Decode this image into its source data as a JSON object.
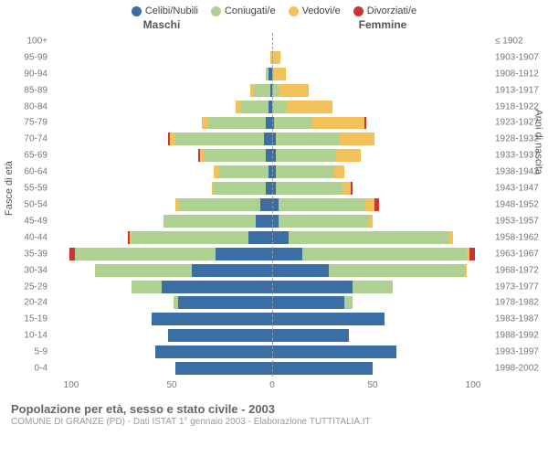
{
  "legend": [
    {
      "label": "Celibi/Nubili",
      "color": "#3a6ea5"
    },
    {
      "label": "Coniugati/e",
      "color": "#aed090"
    },
    {
      "label": "Vedovi/e",
      "color": "#f2c159"
    },
    {
      "label": "Divorziati/e",
      "color": "#cc3333"
    }
  ],
  "headers": {
    "male": "Maschi",
    "female": "Femmine"
  },
  "axis_titles": {
    "left": "Fasce di età",
    "right": "Anni di nascita"
  },
  "x_axis": {
    "max": 110,
    "ticks": [
      100,
      50,
      0,
      50,
      100
    ]
  },
  "colors": {
    "celibi": "#3a6ea5",
    "coniugati": "#aed090",
    "vedovi": "#f2c159",
    "divorziati": "#cc3333",
    "grid": "#999999",
    "text": "#777777",
    "bg": "#ffffff"
  },
  "rows": [
    {
      "age": "100+",
      "birth": "≤ 1902",
      "m": [
        0,
        0,
        0,
        0
      ],
      "f": [
        0,
        0,
        0,
        0
      ]
    },
    {
      "age": "95-99",
      "birth": "1903-1907",
      "m": [
        0,
        0,
        1,
        0
      ],
      "f": [
        0,
        0,
        4,
        0
      ]
    },
    {
      "age": "90-94",
      "birth": "1908-1912",
      "m": [
        2,
        1,
        0,
        0
      ],
      "f": [
        0,
        1,
        6,
        0
      ]
    },
    {
      "age": "85-89",
      "birth": "1913-1917",
      "m": [
        1,
        8,
        2,
        0
      ],
      "f": [
        0,
        3,
        15,
        0
      ]
    },
    {
      "age": "80-84",
      "birth": "1918-1922",
      "m": [
        2,
        14,
        2,
        0
      ],
      "f": [
        0,
        7,
        23,
        0
      ]
    },
    {
      "age": "75-79",
      "birth": "1923-1927",
      "m": [
        3,
        29,
        3,
        0
      ],
      "f": [
        1,
        19,
        26,
        1
      ]
    },
    {
      "age": "70-74",
      "birth": "1928-1932",
      "m": [
        4,
        44,
        3,
        1
      ],
      "f": [
        2,
        31,
        18,
        0
      ]
    },
    {
      "age": "65-69",
      "birth": "1933-1937",
      "m": [
        3,
        31,
        2,
        1
      ],
      "f": [
        2,
        30,
        12,
        0
      ]
    },
    {
      "age": "60-64",
      "birth": "1938-1942",
      "m": [
        2,
        25,
        2,
        0
      ],
      "f": [
        2,
        29,
        5,
        0
      ]
    },
    {
      "age": "55-59",
      "birth": "1943-1947",
      "m": [
        3,
        26,
        1,
        0
      ],
      "f": [
        2,
        33,
        4,
        1
      ]
    },
    {
      "age": "50-54",
      "birth": "1948-1952",
      "m": [
        6,
        41,
        1,
        0
      ],
      "f": [
        3,
        43,
        5,
        2
      ]
    },
    {
      "age": "45-49",
      "birth": "1953-1957",
      "m": [
        8,
        46,
        0,
        0
      ],
      "f": [
        3,
        45,
        2,
        0
      ]
    },
    {
      "age": "40-44",
      "birth": "1958-1962",
      "m": [
        12,
        58,
        1,
        1
      ],
      "f": [
        8,
        80,
        2,
        0
      ]
    },
    {
      "age": "35-39",
      "birth": "1963-1967",
      "m": [
        28,
        70,
        0,
        3
      ],
      "f": [
        15,
        82,
        1,
        3
      ]
    },
    {
      "age": "30-34",
      "birth": "1968-1972",
      "m": [
        40,
        48,
        0,
        0
      ],
      "f": [
        28,
        68,
        1,
        0
      ]
    },
    {
      "age": "25-29",
      "birth": "1973-1977",
      "m": [
        55,
        15,
        0,
        0
      ],
      "f": [
        40,
        20,
        0,
        0
      ]
    },
    {
      "age": "20-24",
      "birth": "1978-1982",
      "m": [
        47,
        2,
        0,
        0
      ],
      "f": [
        36,
        4,
        0,
        0
      ]
    },
    {
      "age": "15-19",
      "birth": "1983-1987",
      "m": [
        60,
        0,
        0,
        0
      ],
      "f": [
        56,
        0,
        0,
        0
      ]
    },
    {
      "age": "10-14",
      "birth": "1988-1992",
      "m": [
        52,
        0,
        0,
        0
      ],
      "f": [
        38,
        0,
        0,
        0
      ]
    },
    {
      "age": "5-9",
      "birth": "1993-1997",
      "m": [
        58,
        0,
        0,
        0
      ],
      "f": [
        62,
        0,
        0,
        0
      ]
    },
    {
      "age": "0-4",
      "birth": "1998-2002",
      "m": [
        48,
        0,
        0,
        0
      ],
      "f": [
        50,
        0,
        0,
        0
      ]
    }
  ],
  "footer": {
    "title": "Popolazione per età, sesso e stato civile - 2003",
    "sub": "COMUNE DI GRANZE (PD) - Dati ISTAT 1° gennaio 2003 - Elaborazione TUTTITALIA.IT"
  }
}
